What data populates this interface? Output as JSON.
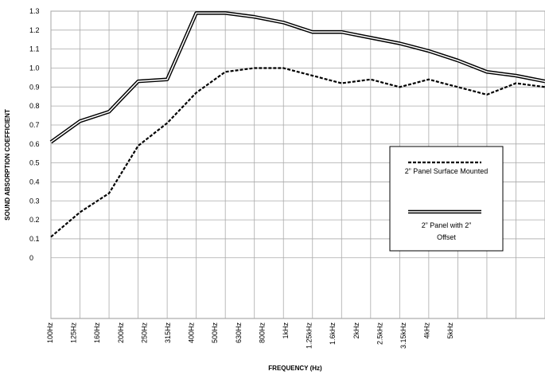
{
  "chart_data": {
    "type": "line",
    "xlabel": "FREQUENCY (Hz)",
    "ylabel": "SOUND ABSORPTION COEFFICIENT",
    "categories": [
      "100Hz",
      "125Hz",
      "160Hz",
      "200Hz",
      "250Hz",
      "315Hz",
      "400Hz",
      "500Hz",
      "630Hz",
      "800Hz",
      "1kHz",
      "1.25kHz",
      "1.6kHz",
      "2kHz",
      "2.5kHz",
      "3.15kHz",
      "4kHz",
      "5kHz"
    ],
    "series": [
      {
        "name": "2” Panel Surface Mounted",
        "color": "#000000",
        "style": "dashed",
        "values": [
          0.11,
          0.24,
          0.34,
          0.59,
          0.71,
          0.87,
          0.98,
          1.0,
          1.0,
          0.96,
          0.92,
          0.94,
          0.9,
          0.94,
          0.9,
          0.86,
          0.92,
          0.9
        ]
      },
      {
        "name": "2” Panel with 2” Offset",
        "color": "#000000",
        "style": "double",
        "values": [
          0.61,
          0.72,
          0.77,
          0.93,
          0.94,
          1.29,
          1.29,
          1.27,
          1.24,
          1.19,
          1.19,
          1.16,
          1.13,
          1.09,
          1.04,
          0.98,
          0.96,
          0.93
        ]
      }
    ],
    "ylim": [
      -0.32,
      1.3
    ],
    "yticks": [
      0,
      0.1,
      0.2,
      0.3,
      0.4,
      0.5,
      0.6,
      0.7,
      0.8,
      0.9,
      {
        "value": 1,
        "label": "1.0"
      },
      1.1,
      1.2,
      1.3
    ],
    "grid": true
  }
}
